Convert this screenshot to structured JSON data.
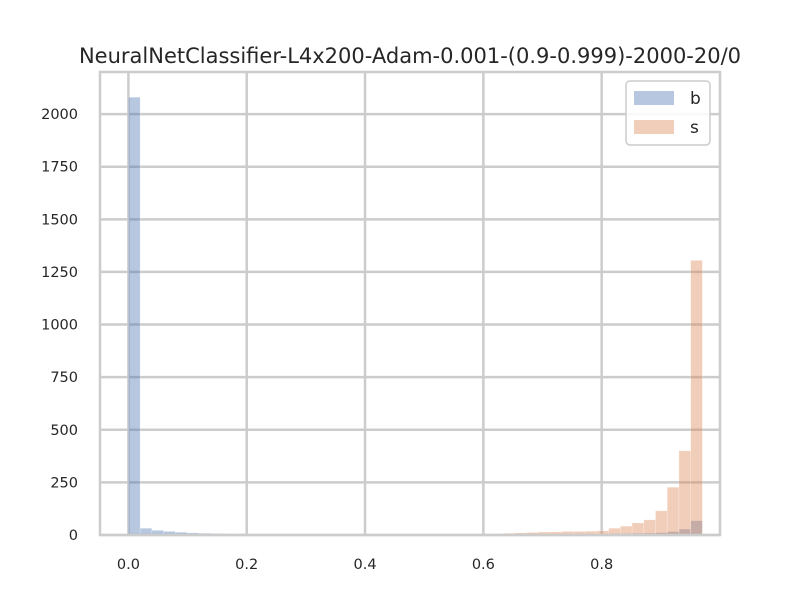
{
  "chart_data": {
    "type": "bar",
    "title": "NeuralNetClassifier-L4x200-Adam-0.001-(0.9-0.999)-2000-20/0",
    "xlabel": "",
    "ylabel": "",
    "xlim": [
      -0.048,
      1.0
    ],
    "ylim": [
      0,
      2200
    ],
    "x_ticks": [
      "0.0",
      "0.2",
      "0.4",
      "0.6",
      "0.8"
    ],
    "x_tick_values": [
      0.0,
      0.2,
      0.4,
      0.6,
      0.8
    ],
    "y_ticks": [
      "0",
      "250",
      "500",
      "750",
      "1000",
      "1250",
      "1500",
      "1750",
      "2000"
    ],
    "y_tick_values": [
      0,
      250,
      500,
      750,
      1000,
      1250,
      1500,
      1750,
      2000
    ],
    "grid": true,
    "legend_position": "top-right",
    "bin_width": 0.0198,
    "bin_starts": [
      0.0,
      0.0198,
      0.0396,
      0.0594,
      0.0792,
      0.099,
      0.1188,
      0.1386,
      0.1584,
      0.1782,
      0.198,
      0.2178,
      0.2376,
      0.2574,
      0.2772,
      0.297,
      0.3168,
      0.3366,
      0.3564,
      0.3762,
      0.396,
      0.4158,
      0.4356,
      0.4554,
      0.4752,
      0.495,
      0.5148,
      0.5346,
      0.5544,
      0.5742,
      0.594,
      0.6138,
      0.6336,
      0.6534,
      0.6732,
      0.693,
      0.7128,
      0.7326,
      0.7524,
      0.7722,
      0.792,
      0.8118,
      0.8316,
      0.8514,
      0.8712,
      0.891,
      0.9108,
      0.9306,
      0.9504
    ],
    "series": [
      {
        "name": "b",
        "color": "#4c72b0",
        "values": [
          2080,
          32,
          22,
          17,
          13,
          10,
          8,
          7,
          6,
          5,
          5,
          4,
          4,
          4,
          3,
          3,
          3,
          3,
          3,
          3,
          3,
          3,
          3,
          3,
          3,
          3,
          3,
          3,
          3,
          3,
          3,
          3,
          3,
          3,
          3,
          4,
          4,
          4,
          4,
          5,
          5,
          6,
          7,
          8,
          9,
          11,
          16,
          28,
          68
        ]
      },
      {
        "name": "s",
        "color": "#dd8452",
        "values": [
          2,
          2,
          2,
          2,
          2,
          2,
          2,
          2,
          2,
          2,
          3,
          3,
          3,
          3,
          3,
          3,
          3,
          3,
          3,
          3,
          3,
          3,
          3,
          3,
          3,
          3,
          3,
          3,
          3,
          4,
          5,
          6,
          8,
          10,
          12,
          14,
          15,
          17,
          17,
          18,
          20,
          32,
          42,
          57,
          72,
          115,
          227,
          400,
          1305
        ]
      }
    ]
  }
}
